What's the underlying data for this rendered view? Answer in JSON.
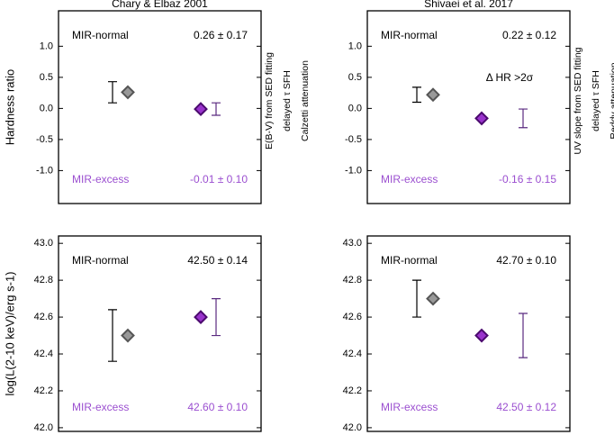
{
  "chart_data": [
    {
      "type": "errorbar",
      "title": "Chary & Elbaz 2001",
      "ylabel": "Hardness ratio",
      "annotations": [
        "E(B-V) from SED fitting",
        "delayed τ SFH",
        "Calzetti attenuation"
      ],
      "ylim": [
        -1.53,
        1.57
      ],
      "yticks": [
        {
          "value": -1.0,
          "label": "-1.0"
        },
        -0.5,
        {
          "value": 0.0,
          "label": "0.0"
        },
        0.5,
        {
          "value": 1.0,
          "label": "1.0"
        }
      ],
      "series": [
        {
          "name": "MIR-normal",
          "color": "#999999",
          "values": [
            0.26
          ],
          "errors": [
            0.17
          ],
          "value_labels": [
            "0.26 ± 0.17"
          ]
        },
        {
          "name": "MIR-excess",
          "color": "#9933cc",
          "values": [
            -0.01
          ],
          "errors": [
            0.1
          ],
          "value_labels": [
            "-0.01 ± 0.10"
          ]
        }
      ]
    },
    {
      "type": "errorbar",
      "title": "Shivaei et al. 2017",
      "note": "Δ HR >2σ",
      "annotations": [
        "UV slope from SED fitting",
        "delayed τ SFH",
        "Reddy attenuation"
      ],
      "ylim": [
        -1.53,
        1.57
      ],
      "yticks": [
        {
          "value": -1.0,
          "label": "-1.0"
        },
        -0.5,
        {
          "value": 0.0,
          "label": "0.0"
        },
        0.5,
        {
          "value": 1.0,
          "label": "1.0"
        }
      ],
      "series": [
        {
          "name": "MIR-normal",
          "color": "#999999",
          "values": [
            0.22
          ],
          "errors": [
            0.12
          ],
          "value_labels": [
            "0.22 ± 0.12"
          ]
        },
        {
          "name": "MIR-excess",
          "color": "#9933cc",
          "values": [
            -0.16
          ],
          "errors": [
            0.15
          ],
          "value_labels": [
            "-0.16 ± 0.15"
          ]
        }
      ]
    },
    {
      "type": "errorbar",
      "ylabel": "log(L(2-10 keV)/erg s-1)",
      "ylim": [
        41.98,
        43.04
      ],
      "yticks": [
        {
          "value": 42.0,
          "label": "42.0"
        },
        42.2,
        42.4,
        42.6,
        42.8,
        {
          "value": 43.0,
          "label": "43.0"
        }
      ],
      "series": [
        {
          "name": "MIR-normal",
          "color": "#999999",
          "values": [
            42.5
          ],
          "errors": [
            0.14
          ],
          "value_labels": [
            "42.50 ± 0.14"
          ]
        },
        {
          "name": "MIR-excess",
          "color": "#9933cc",
          "values": [
            42.6
          ],
          "errors": [
            0.1
          ],
          "value_labels": [
            "42.60 ± 0.10"
          ]
        }
      ]
    },
    {
      "type": "errorbar",
      "ylim": [
        41.98,
        43.04
      ],
      "yticks": [
        {
          "value": 42.0,
          "label": "42.0"
        },
        42.2,
        42.4,
        42.6,
        42.8,
        {
          "value": 43.0,
          "label": "43.0"
        }
      ],
      "series": [
        {
          "name": "MIR-normal",
          "color": "#999999",
          "values": [
            42.7
          ],
          "errors": [
            0.1
          ],
          "value_labels": [
            "42.70 ± 0.10"
          ]
        },
        {
          "name": "MIR-excess",
          "color": "#9933cc",
          "values": [
            42.5
          ],
          "errors": [
            0.12
          ],
          "value_labels": [
            "42.50 ± 0.12"
          ]
        }
      ]
    }
  ]
}
